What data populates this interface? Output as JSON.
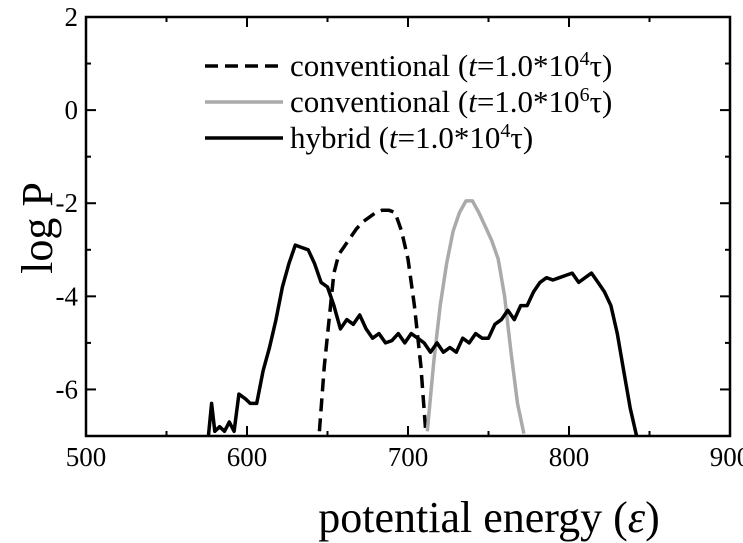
{
  "chart_data": {
    "type": "line",
    "xlabel": "potential energy (",
    "xlabel_symbol": "ε",
    "xlabel_close": ")",
    "ylabel": "log P",
    "xlim": [
      500,
      900
    ],
    "ylim": [
      -7,
      2
    ],
    "xticks": [
      500,
      600,
      700,
      800,
      900
    ],
    "xtick_labels": [
      "500",
      "600",
      "700",
      "800",
      "900"
    ],
    "yticks": [
      -6,
      -4,
      -2,
      0,
      2
    ],
    "ytick_labels": [
      "-6",
      "-4",
      "-2",
      "0",
      "2"
    ],
    "grid": false,
    "legend_position": "top-right",
    "series": [
      {
        "name": "conventional (t=1.0*10^4τ)",
        "legend": {
          "prefix": "conventional (",
          "var": "t",
          "mid": "=1.0*10",
          "exp": "4",
          "suffix": "τ)"
        },
        "color": "#000000",
        "dash": "dashed",
        "x": [
          645,
          648,
          651,
          654,
          657,
          660,
          664,
          668,
          672,
          676,
          680,
          684,
          688,
          692,
          696,
          700,
          704,
          708,
          711
        ],
        "y": [
          -6.9,
          -5.5,
          -4.5,
          -3.5,
          -3.1,
          -2.95,
          -2.75,
          -2.55,
          -2.4,
          -2.3,
          -2.2,
          -2.15,
          -2.15,
          -2.2,
          -2.6,
          -3.2,
          -4.2,
          -5.5,
          -6.9
        ]
      },
      {
        "name": "conventional (t=1.0*10^6τ)",
        "legend": {
          "prefix": "conventional (",
          "var": "t",
          "mid": "=1.0*10",
          "exp": "6",
          "suffix": "τ)"
        },
        "color": "#aaaaaa",
        "dash": "solid",
        "x": [
          712,
          716,
          720,
          724,
          728,
          732,
          736,
          740,
          744,
          748,
          752,
          756,
          760,
          764,
          768,
          772
        ],
        "y": [
          -6.9,
          -5.4,
          -4.2,
          -3.3,
          -2.6,
          -2.2,
          -1.95,
          -1.95,
          -2.2,
          -2.5,
          -2.8,
          -3.2,
          -4.0,
          -5.2,
          -6.3,
          -6.95
        ]
      },
      {
        "name": "hybrid (t=1.0*10^4τ)",
        "legend": {
          "prefix": "hybrid (",
          "var": "t",
          "mid": "=1.0*10",
          "exp": "4",
          "suffix": "τ)"
        },
        "color": "#000000",
        "dash": "solid",
        "x": [
          576,
          578,
          580,
          583,
          586,
          589,
          592,
          595,
          599,
          602,
          606,
          610,
          614,
          618,
          622,
          626,
          630,
          634,
          638,
          642,
          646,
          650,
          654,
          658,
          662,
          666,
          670,
          674,
          678,
          682,
          686,
          690,
          694,
          698,
          702,
          706,
          710,
          714,
          718,
          722,
          726,
          730,
          734,
          738,
          742,
          746,
          750,
          754,
          758,
          762,
          766,
          770,
          774,
          778,
          782,
          786,
          790,
          794,
          798,
          802,
          806,
          810,
          814,
          818,
          822,
          826,
          830,
          834,
          838,
          842
        ],
        "y": [
          -7.0,
          -6.3,
          -6.9,
          -6.8,
          -6.9,
          -6.7,
          -6.9,
          -6.1,
          -6.2,
          -6.3,
          -6.3,
          -5.6,
          -5.1,
          -4.5,
          -3.8,
          -3.3,
          -2.9,
          -2.95,
          -3.0,
          -3.3,
          -3.7,
          -3.8,
          -4.2,
          -4.7,
          -4.5,
          -4.6,
          -4.4,
          -4.7,
          -4.9,
          -4.8,
          -5.0,
          -4.95,
          -4.8,
          -5.0,
          -4.8,
          -4.9,
          -5.0,
          -5.2,
          -5.0,
          -5.2,
          -5.1,
          -5.2,
          -4.9,
          -5.0,
          -4.8,
          -4.9,
          -4.9,
          -4.6,
          -4.5,
          -4.3,
          -4.5,
          -4.2,
          -4.2,
          -3.9,
          -3.7,
          -3.6,
          -3.65,
          -3.6,
          -3.55,
          -3.5,
          -3.7,
          -3.6,
          -3.5,
          -3.7,
          -3.9,
          -4.2,
          -4.8,
          -5.6,
          -6.4,
          -7.0
        ]
      }
    ]
  }
}
